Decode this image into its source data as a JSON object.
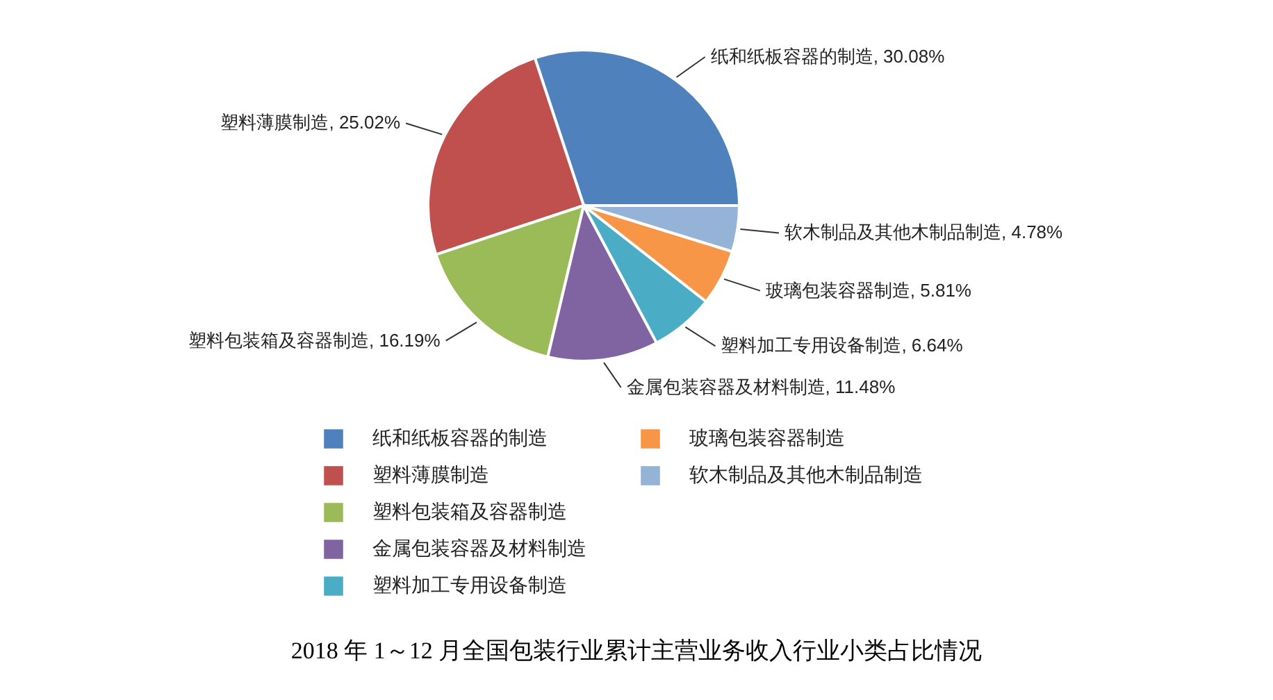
{
  "chart_data": {
    "type": "pie",
    "title": "2018 年 1～12 月全国包装行业累计主营业务收入行业小类占比情况",
    "categories": [
      "纸和纸板容器的制造",
      "塑料薄膜制造",
      "塑料包装箱及容器制造",
      "金属包装容器及材料制造",
      "塑料加工专用设备制造",
      "玻璃包装容器制造",
      "软木制品及其他木制品制造"
    ],
    "values": [
      30.08,
      25.02,
      16.19,
      11.48,
      6.64,
      5.81,
      4.78
    ],
    "colors": [
      "#4f81bd",
      "#c0504d",
      "#9bbb59",
      "#8064a2",
      "#4bacc6",
      "#f79646",
      "#95b3d7"
    ],
    "value_labels": [
      "纸和纸板容器的制造, 30.08%",
      "塑料薄膜制造, 25.02%",
      "塑料包装箱及容器制造, 16.19%",
      "金属包装容器及材料制造, 11.48%",
      "塑料加工专用设备制造, 6.64%",
      "玻璃包装容器制造, 5.81%",
      "软木制品及其他木制品制造, 4.78%"
    ],
    "legend": "bottom"
  }
}
